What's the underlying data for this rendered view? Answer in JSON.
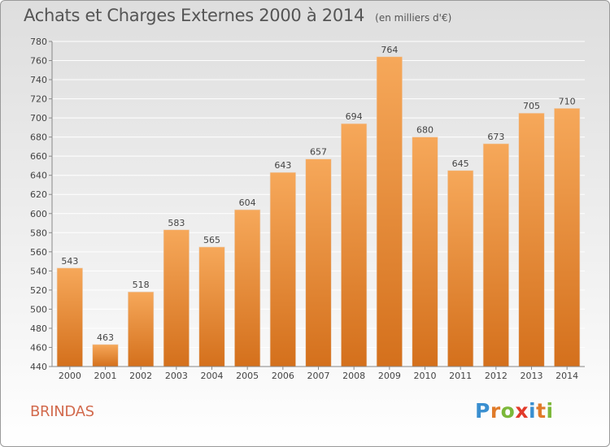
{
  "title": "Achats et Charges Externes 2000 à 2014",
  "unit": "(en milliers d'€)",
  "place": "BRINDAS",
  "brand": {
    "letters": [
      "P",
      "r",
      "o",
      "x",
      "i",
      "t",
      "i"
    ],
    "colors": [
      "#3a8fd0",
      "#e07b2a",
      "#7cb83a",
      "#e23a2a",
      "#3a8fd0",
      "#e07b2a",
      "#7cb83a"
    ]
  },
  "colors": {
    "bar_light": "#f6a85a",
    "bar_dark": "#d4701c",
    "axis": "#888888",
    "grid": "#ffffff",
    "text": "#444444"
  },
  "chart_data": {
    "type": "bar",
    "categories": [
      "2000",
      "2001",
      "2002",
      "2003",
      "2004",
      "2005",
      "2006",
      "2007",
      "2008",
      "2009",
      "2010",
      "2011",
      "2012",
      "2013",
      "2014"
    ],
    "values": [
      543,
      463,
      518,
      583,
      565,
      604,
      643,
      657,
      694,
      764,
      680,
      645,
      673,
      705,
      710
    ],
    "ylim": [
      440,
      780
    ],
    "yticks": [
      440,
      460,
      480,
      500,
      520,
      540,
      560,
      580,
      600,
      620,
      640,
      660,
      680,
      700,
      720,
      740,
      760,
      780
    ],
    "grid": true,
    "legend": "none"
  }
}
